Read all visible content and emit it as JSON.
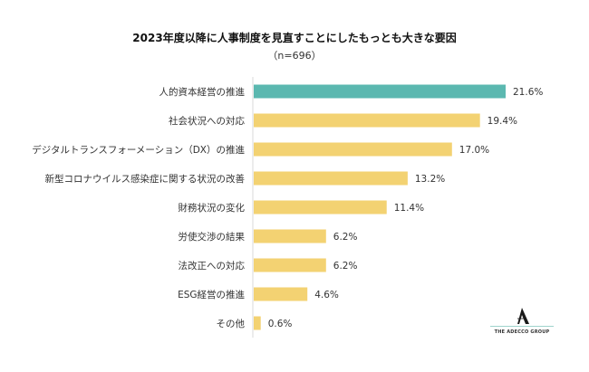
{
  "chart_data": {
    "type": "bar",
    "orientation": "horizontal",
    "title": "2023年度以降に人事制度を見直すことにしたもっとも大きな要因",
    "subtitle": "（n=696）",
    "xlabel": "",
    "ylabel": "",
    "xlim": [
      0,
      25
    ],
    "grid": false,
    "legend": "none",
    "value_suffix": "%",
    "categories": [
      "人的資本経営の推進",
      "社会状況への対応",
      "デジタルトランスフォーメーション（DX）の推進",
      "新型コロナウイルス感染症に関する状況の改善",
      "財務状況の変化",
      "労使交渉の結果",
      "法改正への対応",
      "ESG経営の推進",
      "その他"
    ],
    "values": [
      21.6,
      19.4,
      17.0,
      13.2,
      11.4,
      6.2,
      6.2,
      4.6,
      0.6
    ],
    "value_labels": [
      "21.6%",
      "19.4%",
      "17.0%",
      "13.2%",
      "11.4%",
      "6.2%",
      "6.2%",
      "4.6%",
      "0.6%"
    ],
    "highlight_index": 0,
    "colors": {
      "highlight": "#5bb8b0",
      "default": "#f3d272",
      "axis": "#d9d9d9"
    }
  },
  "logo": {
    "mark": "A",
    "text": "THE ADECCO GROUP"
  }
}
